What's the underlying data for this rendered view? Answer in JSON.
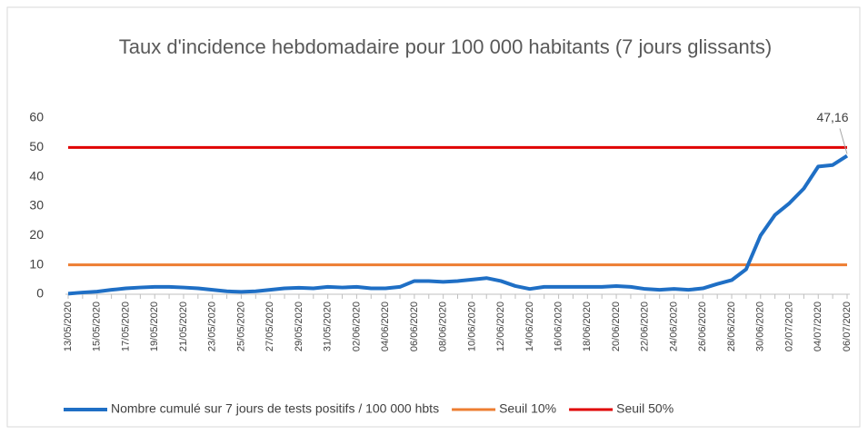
{
  "chart_data": {
    "type": "line",
    "title": "Taux d'incidence hebdomadaire pour 100 000 habitants (7 jours glissants)",
    "categories": [
      "13/05/2020",
      null,
      "15/05/2020",
      null,
      "17/05/2020",
      null,
      "19/05/2020",
      null,
      "21/05/2020",
      null,
      "23/05/2020",
      null,
      "25/05/2020",
      null,
      "27/05/2020",
      null,
      "29/05/2020",
      null,
      "31/05/2020",
      null,
      "02/06/2020",
      null,
      "04/06/2020",
      null,
      "06/06/2020",
      null,
      "08/06/2020",
      null,
      "10/06/2020",
      null,
      "12/06/2020",
      null,
      "14/06/2020",
      null,
      "16/06/2020",
      null,
      "18/06/2020",
      null,
      "20/06/2020",
      null,
      "22/06/2020",
      null,
      "24/06/2020",
      null,
      "26/06/2020",
      null,
      "28/06/2020",
      null,
      "30/06/2020",
      null,
      "02/07/2020",
      null,
      "04/07/2020",
      null,
      "06/07/2020"
    ],
    "series": [
      {
        "name": "Nombre cumulé sur 7 jours de tests positifs / 100 000 hbts",
        "color": "#1f6fc5",
        "values": [
          0.2,
          0.6,
          0.9,
          1.5,
          2.0,
          2.3,
          2.5,
          2.5,
          2.3,
          2.0,
          1.5,
          1.0,
          0.8,
          1.0,
          1.5,
          2.0,
          2.2,
          2.0,
          2.5,
          2.3,
          2.5,
          2.0,
          2.0,
          2.5,
          4.5,
          4.5,
          4.2,
          4.5,
          5.0,
          5.5,
          4.5,
          2.8,
          1.8,
          2.5,
          2.5,
          2.5,
          2.5,
          2.5,
          2.8,
          2.5,
          1.8,
          1.5,
          1.8,
          1.5,
          2.0,
          3.5,
          4.8,
          8.5,
          20,
          27,
          31,
          36,
          43.5,
          44,
          47.16
        ],
        "value_labels": [
          null,
          null,
          null,
          null,
          null,
          null,
          null,
          null,
          null,
          null,
          null,
          null,
          null,
          null,
          null,
          null,
          null,
          null,
          null,
          null,
          null,
          null,
          null,
          null,
          null,
          null,
          null,
          null,
          null,
          null,
          null,
          null,
          null,
          null,
          null,
          null,
          null,
          null,
          null,
          null,
          null,
          null,
          null,
          null,
          null,
          null,
          null,
          null,
          null,
          null,
          null,
          null,
          null,
          null,
          "47,16"
        ]
      },
      {
        "name": "Seuil 10%",
        "color": "#ed7d31",
        "values": [
          10,
          10,
          10,
          10,
          10,
          10,
          10,
          10,
          10,
          10,
          10,
          10,
          10,
          10,
          10,
          10,
          10,
          10,
          10,
          10,
          10,
          10,
          10,
          10,
          10,
          10,
          10,
          10,
          10,
          10,
          10,
          10,
          10,
          10,
          10,
          10,
          10,
          10,
          10,
          10,
          10,
          10,
          10,
          10,
          10,
          10,
          10,
          10,
          10,
          10,
          10,
          10,
          10,
          10,
          10
        ]
      },
      {
        "name": "Seuil 50%",
        "color": "#e00000",
        "values": [
          50,
          50,
          50,
          50,
          50,
          50,
          50,
          50,
          50,
          50,
          50,
          50,
          50,
          50,
          50,
          50,
          50,
          50,
          50,
          50,
          50,
          50,
          50,
          50,
          50,
          50,
          50,
          50,
          50,
          50,
          50,
          50,
          50,
          50,
          50,
          50,
          50,
          50,
          50,
          50,
          50,
          50,
          50,
          50,
          50,
          50,
          50,
          50,
          50,
          50,
          50,
          50,
          50,
          50,
          50
        ]
      }
    ],
    "ylim": [
      0,
      60
    ],
    "yticks": [
      0,
      10,
      20,
      30,
      40,
      50,
      60
    ],
    "grid": false,
    "legend": "bottom"
  }
}
